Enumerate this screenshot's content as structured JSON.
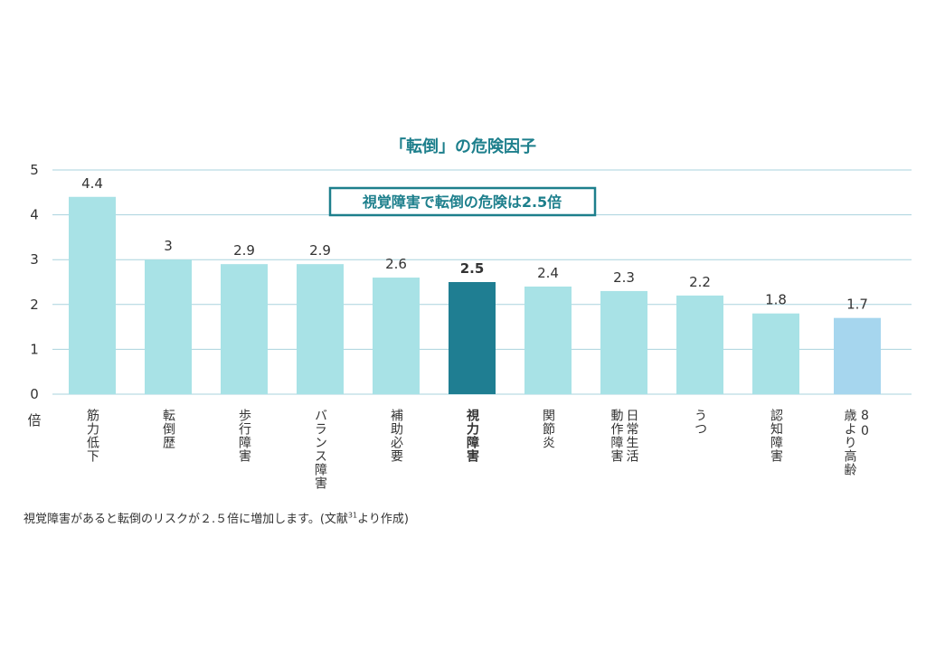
{
  "chart_data": {
    "type": "bar",
    "title": "「転倒」の危険因子",
    "annotation": "視覚障害で転倒の危険は2.5倍",
    "ylabel": "倍",
    "ylim": [
      0,
      5
    ],
    "yticks": [
      "0",
      "1",
      "2",
      "3",
      "4",
      "5"
    ],
    "grid": true,
    "categories": [
      "筋力低下",
      "転倒歴",
      "歩行障害",
      "バランス障害",
      "補助必要",
      "視力障害",
      "関節炎",
      "日常生活動作障害",
      "うつ",
      "認知障害",
      "80歳より高齢"
    ],
    "category_lines": [
      [
        "筋力低下"
      ],
      [
        "転倒歴"
      ],
      [
        "歩行障害"
      ],
      [
        "バランス障害"
      ],
      [
        "補助必要"
      ],
      [
        "視力障害"
      ],
      [
        "関節炎"
      ],
      [
        "日常生活",
        "動作障害"
      ],
      [
        "うつ"
      ],
      [
        "認知障害"
      ],
      [
        "80",
        "歳より高齢"
      ]
    ],
    "values": [
      4.4,
      3,
      2.9,
      2.9,
      2.6,
      2.5,
      2.4,
      2.3,
      2.2,
      1.8,
      1.7
    ],
    "value_labels": [
      "4.4",
      "3",
      "2.9",
      "2.9",
      "2.6",
      "2.5",
      "2.4",
      "2.3",
      "2.2",
      "1.8",
      "1.7"
    ],
    "highlight_index": 5,
    "colors": {
      "bar": "#a8e2e6",
      "bar_last": "#a6d6ee",
      "bar_highlight": "#1f7e92",
      "grid": "#a9d3dd",
      "accent": "#1d7f8c"
    }
  },
  "footnote": {
    "text": "視覚障害があると転倒のリスクが２.５倍に増加します。(文献",
    "ref": "31",
    "suffix": "より作成)"
  }
}
